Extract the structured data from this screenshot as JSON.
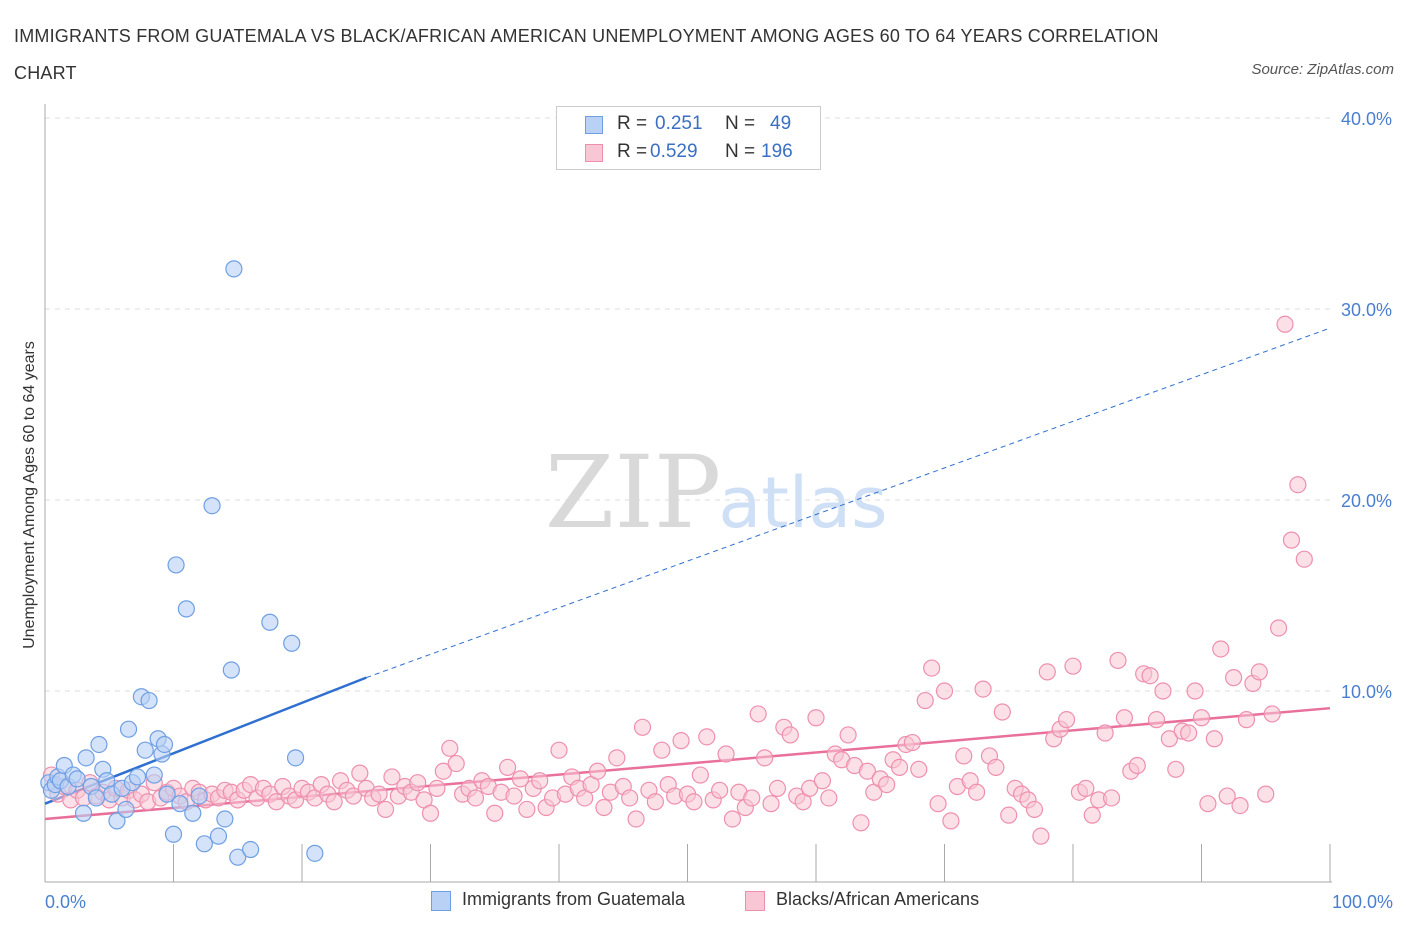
{
  "title": "IMMIGRANTS FROM GUATEMALA VS BLACK/AFRICAN AMERICAN UNEMPLOYMENT AMONG AGES 60 TO 64 YEARS CORRELATION CHART",
  "source": "Source: ZipAtlas.com",
  "watermark": {
    "zip": "ZIP",
    "atlas": "atlas"
  },
  "legend_top": [
    {
      "r_label": "R =",
      "r_value": "0.251",
      "n_label": "N =",
      "n_value": "49"
    },
    {
      "r_label": "R =",
      "r_value": "0.529",
      "n_label": "N =",
      "n_value": "196"
    }
  ],
  "legend_bottom": [
    {
      "label": "Immigrants from Guatemala"
    },
    {
      "label": "Blacks/African Americans"
    }
  ],
  "colors": {
    "blue_fill": "#b8d1f5",
    "blue_stroke": "#6f9fe3",
    "blue_line": "#2f6fd0",
    "pink_fill": "#f8c6d5",
    "pink_stroke": "#ee8fae",
    "pink_line": "#e8709a",
    "grid": "#dddddd",
    "axis_text": "#4a7fcf"
  },
  "chart_data": {
    "type": "scatter",
    "title": "IMMIGRANTS FROM GUATEMALA VS BLACK/AFRICAN AMERICAN UNEMPLOYMENT AMONG AGES 60 TO 64 YEARS CORRELATION CHART",
    "xlabel": "",
    "ylabel": "Unemployment Among Ages 60 to 64 years",
    "xlim": [
      0,
      100
    ],
    "ylim": [
      0,
      40
    ],
    "x_tick_labels": [
      "0.0%",
      "100.0%"
    ],
    "y_ticks": [
      10,
      20,
      30,
      40
    ],
    "y_tick_labels": [
      "10.0%",
      "20.0%",
      "30.0%",
      "40.0%"
    ],
    "grid": true,
    "legend_position": "top-center",
    "series": [
      {
        "name": "Immigrants from Guatemala",
        "R": 0.251,
        "N": 49,
        "trend": {
          "x0": 0,
          "y0": 4.1,
          "x1": 25,
          "y1": 10.7,
          "dashed_to_x": 100,
          "dashed_to_y": 29
        },
        "points": [
          [
            0.3,
            5.2
          ],
          [
            0.5,
            4.8
          ],
          [
            0.8,
            5.1
          ],
          [
            1.0,
            5.5
          ],
          [
            1.2,
            5.3
          ],
          [
            1.5,
            6.1
          ],
          [
            1.8,
            5.0
          ],
          [
            2.2,
            5.6
          ],
          [
            2.5,
            5.4
          ],
          [
            3.0,
            3.6
          ],
          [
            3.2,
            6.5
          ],
          [
            3.6,
            5.0
          ],
          [
            4.0,
            4.4
          ],
          [
            4.2,
            7.2
          ],
          [
            4.5,
            5.9
          ],
          [
            4.8,
            5.3
          ],
          [
            5.2,
            4.6
          ],
          [
            5.6,
            3.2
          ],
          [
            6.0,
            4.9
          ],
          [
            6.3,
            3.8
          ],
          [
            6.5,
            8.0
          ],
          [
            6.8,
            5.2
          ],
          [
            7.2,
            5.5
          ],
          [
            7.5,
            9.7
          ],
          [
            7.8,
            6.9
          ],
          [
            8.1,
            9.5
          ],
          [
            8.5,
            5.6
          ],
          [
            8.8,
            7.5
          ],
          [
            9.1,
            6.7
          ],
          [
            9.3,
            7.2
          ],
          [
            9.5,
            4.6
          ],
          [
            10.0,
            2.5
          ],
          [
            10.2,
            16.6
          ],
          [
            10.5,
            4.1
          ],
          [
            11.0,
            14.3
          ],
          [
            11.5,
            3.6
          ],
          [
            12.4,
            2.0
          ],
          [
            13.0,
            19.7
          ],
          [
            13.5,
            2.4
          ],
          [
            14.0,
            3.3
          ],
          [
            14.5,
            11.1
          ],
          [
            14.7,
            32.1
          ],
          [
            15.0,
            1.3
          ],
          [
            16.0,
            1.7
          ],
          [
            17.5,
            13.6
          ],
          [
            19.2,
            12.5
          ],
          [
            19.5,
            6.5
          ],
          [
            21.0,
            1.5
          ],
          [
            12.0,
            4.5
          ]
        ]
      },
      {
        "name": "Blacks/African Americans",
        "R": 0.529,
        "N": 196,
        "trend": {
          "x0": 0,
          "y0": 3.3,
          "x1": 100,
          "y1": 9.1
        },
        "points": [
          [
            0.5,
            5.6
          ],
          [
            1.0,
            4.6
          ],
          [
            1.5,
            5.0
          ],
          [
            2.0,
            4.3
          ],
          [
            2.5,
            4.8
          ],
          [
            3.0,
            4.4
          ],
          [
            3.5,
            5.2
          ],
          [
            4.0,
            4.5
          ],
          [
            4.5,
            4.7
          ],
          [
            5.0,
            4.3
          ],
          [
            5.5,
            4.9
          ],
          [
            6.0,
            4.4
          ],
          [
            6.5,
            4.8
          ],
          [
            7.0,
            4.3
          ],
          [
            7.5,
            4.6
          ],
          [
            8.0,
            4.2
          ],
          [
            8.5,
            5.2
          ],
          [
            9.0,
            4.4
          ],
          [
            9.5,
            4.7
          ],
          [
            10.0,
            4.9
          ],
          [
            10.5,
            4.5
          ],
          [
            11.0,
            4.2
          ],
          [
            11.5,
            4.9
          ],
          [
            12.0,
            4.7
          ],
          [
            12.5,
            4.3
          ],
          [
            13.0,
            4.6
          ],
          [
            13.5,
            4.4
          ],
          [
            14.0,
            4.8
          ],
          [
            14.5,
            4.7
          ],
          [
            15.0,
            4.3
          ],
          [
            15.5,
            4.8
          ],
          [
            16.0,
            5.1
          ],
          [
            16.5,
            4.4
          ],
          [
            17.0,
            4.9
          ],
          [
            17.5,
            4.6
          ],
          [
            18.0,
            4.2
          ],
          [
            18.5,
            5.0
          ],
          [
            19.0,
            4.5
          ],
          [
            19.5,
            4.3
          ],
          [
            20.0,
            4.9
          ],
          [
            20.5,
            4.7
          ],
          [
            21.0,
            4.4
          ],
          [
            21.5,
            5.1
          ],
          [
            22.0,
            4.6
          ],
          [
            22.5,
            4.2
          ],
          [
            23.0,
            5.3
          ],
          [
            23.5,
            4.8
          ],
          [
            24.0,
            4.5
          ],
          [
            24.5,
            5.7
          ],
          [
            25.0,
            4.9
          ],
          [
            25.5,
            4.4
          ],
          [
            26.0,
            4.6
          ],
          [
            26.5,
            3.8
          ],
          [
            27.0,
            5.5
          ],
          [
            27.5,
            4.5
          ],
          [
            28.0,
            5.0
          ],
          [
            28.5,
            4.7
          ],
          [
            29.0,
            5.2
          ],
          [
            29.5,
            4.3
          ],
          [
            30.0,
            3.6
          ],
          [
            30.5,
            4.9
          ],
          [
            31.0,
            5.8
          ],
          [
            31.5,
            7.0
          ],
          [
            32.0,
            6.2
          ],
          [
            32.5,
            4.6
          ],
          [
            33.0,
            4.9
          ],
          [
            33.5,
            4.4
          ],
          [
            34.0,
            5.3
          ],
          [
            34.5,
            5.0
          ],
          [
            35.0,
            3.6
          ],
          [
            35.5,
            4.7
          ],
          [
            36.0,
            6.0
          ],
          [
            36.5,
            4.5
          ],
          [
            37.0,
            5.4
          ],
          [
            37.5,
            3.8
          ],
          [
            38.0,
            4.9
          ],
          [
            38.5,
            5.3
          ],
          [
            39.0,
            3.9
          ],
          [
            39.5,
            4.4
          ],
          [
            40.0,
            6.9
          ],
          [
            40.5,
            4.6
          ],
          [
            41.0,
            5.5
          ],
          [
            41.5,
            4.9
          ],
          [
            42.0,
            4.4
          ],
          [
            42.5,
            5.1
          ],
          [
            43.0,
            5.8
          ],
          [
            43.5,
            3.9
          ],
          [
            44.0,
            4.7
          ],
          [
            44.5,
            6.5
          ],
          [
            45.0,
            5.0
          ],
          [
            45.5,
            4.4
          ],
          [
            46.0,
            3.3
          ],
          [
            46.5,
            8.1
          ],
          [
            47.0,
            4.8
          ],
          [
            47.5,
            4.2
          ],
          [
            48.0,
            6.9
          ],
          [
            48.5,
            5.1
          ],
          [
            49.0,
            4.5
          ],
          [
            49.5,
            7.4
          ],
          [
            50.0,
            4.6
          ],
          [
            50.5,
            4.2
          ],
          [
            51.0,
            5.6
          ],
          [
            51.5,
            7.6
          ],
          [
            52.0,
            4.3
          ],
          [
            52.5,
            4.8
          ],
          [
            53.0,
            6.7
          ],
          [
            53.5,
            3.3
          ],
          [
            54.0,
            4.7
          ],
          [
            54.5,
            3.9
          ],
          [
            55.0,
            4.4
          ],
          [
            55.5,
            8.8
          ],
          [
            56.0,
            6.5
          ],
          [
            56.5,
            4.1
          ],
          [
            57.0,
            4.9
          ],
          [
            57.5,
            8.1
          ],
          [
            58.0,
            7.7
          ],
          [
            58.5,
            4.5
          ],
          [
            59.0,
            4.2
          ],
          [
            59.5,
            4.9
          ],
          [
            60.0,
            8.6
          ],
          [
            60.5,
            5.3
          ],
          [
            61.0,
            4.4
          ],
          [
            61.5,
            6.7
          ],
          [
            62.0,
            6.4
          ],
          [
            62.5,
            7.7
          ],
          [
            63.0,
            6.1
          ],
          [
            63.5,
            3.1
          ],
          [
            64.0,
            5.8
          ],
          [
            64.5,
            4.7
          ],
          [
            65.0,
            5.4
          ],
          [
            65.5,
            5.1
          ],
          [
            66.0,
            6.4
          ],
          [
            66.5,
            6.0
          ],
          [
            67.0,
            7.2
          ],
          [
            67.5,
            7.3
          ],
          [
            68.0,
            5.9
          ],
          [
            68.5,
            9.5
          ],
          [
            69.0,
            11.2
          ],
          [
            69.5,
            4.1
          ],
          [
            70.0,
            10.0
          ],
          [
            70.5,
            3.2
          ],
          [
            71.0,
            5.0
          ],
          [
            71.5,
            6.6
          ],
          [
            72.0,
            5.3
          ],
          [
            72.5,
            4.7
          ],
          [
            73.0,
            10.1
          ],
          [
            73.5,
            6.6
          ],
          [
            74.0,
            6.0
          ],
          [
            74.5,
            8.9
          ],
          [
            75.0,
            3.5
          ],
          [
            75.5,
            4.9
          ],
          [
            76.0,
            4.6
          ],
          [
            76.5,
            4.3
          ],
          [
            77.0,
            3.8
          ],
          [
            77.5,
            2.4
          ],
          [
            78.0,
            11.0
          ],
          [
            78.5,
            7.5
          ],
          [
            79.0,
            8.0
          ],
          [
            79.5,
            8.5
          ],
          [
            80.0,
            11.3
          ],
          [
            80.5,
            4.7
          ],
          [
            81.0,
            4.9
          ],
          [
            81.5,
            3.5
          ],
          [
            82.0,
            4.3
          ],
          [
            82.5,
            7.8
          ],
          [
            83.0,
            4.4
          ],
          [
            83.5,
            11.6
          ],
          [
            84.0,
            8.6
          ],
          [
            84.5,
            5.8
          ],
          [
            85.0,
            6.1
          ],
          [
            85.5,
            10.9
          ],
          [
            86.0,
            10.8
          ],
          [
            86.5,
            8.5
          ],
          [
            87.0,
            10.0
          ],
          [
            87.5,
            7.5
          ],
          [
            88.0,
            5.9
          ],
          [
            88.5,
            7.9
          ],
          [
            89.0,
            7.8
          ],
          [
            89.5,
            10.0
          ],
          [
            90.0,
            8.6
          ],
          [
            90.5,
            4.1
          ],
          [
            91.0,
            7.5
          ],
          [
            91.5,
            12.2
          ],
          [
            92.0,
            4.5
          ],
          [
            92.5,
            10.7
          ],
          [
            93.0,
            4.0
          ],
          [
            93.5,
            8.5
          ],
          [
            94.0,
            10.4
          ],
          [
            94.5,
            11.0
          ],
          [
            95.0,
            4.6
          ],
          [
            95.5,
            8.8
          ],
          [
            96.0,
            13.3
          ],
          [
            96.5,
            29.2
          ],
          [
            97.0,
            17.9
          ],
          [
            97.5,
            20.8
          ],
          [
            98.0,
            16.9
          ]
        ]
      }
    ]
  }
}
